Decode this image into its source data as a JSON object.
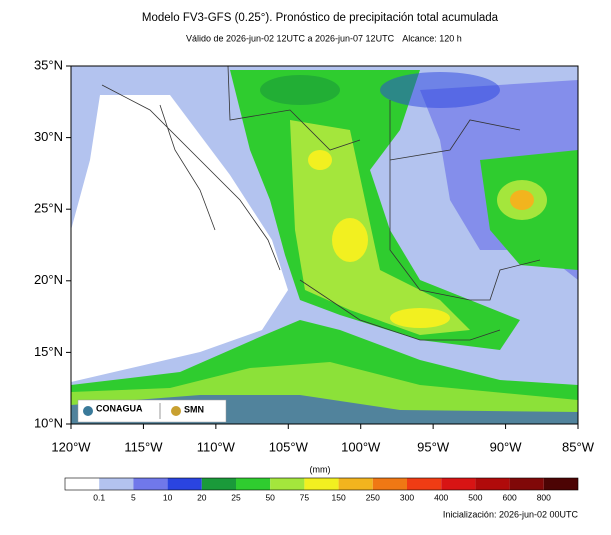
{
  "header": {
    "title": "Modelo FV3-GFS (0.25°). Pronóstico de precipitación total acumulada",
    "valid": "Válido de 2026-jun-02 12UTC a 2026-jun-07 12UTC",
    "range": "Alcance: 120 h"
  },
  "map": {
    "lat_labels": [
      "35°N",
      "30°N",
      "25°N",
      "20°N",
      "15°N",
      "10°N"
    ],
    "lon_labels": [
      "120°W",
      "115°W",
      "110°W",
      "105°W",
      "100°W",
      "95°W",
      "90°W",
      "85°W"
    ],
    "logos": [
      "CONAGUA",
      "SMN"
    ]
  },
  "colorbar": {
    "unit": "(mm)",
    "levels": [
      0.1,
      5,
      10,
      20,
      25,
      50,
      75,
      150,
      250,
      300,
      400,
      500,
      600,
      800
    ],
    "colors": [
      "#ffffff",
      "#b3c3ef",
      "#7078ea",
      "#2a44e0",
      "#1a9a3a",
      "#2fcc2f",
      "#a4e63c",
      "#f2f020",
      "#f2b41e",
      "#f07814",
      "#f03c14",
      "#d81414",
      "#b00a0a",
      "#800808",
      "#4c0404"
    ]
  },
  "footer": {
    "initialization": "Inicialización: 2026-jun-02 00UTC"
  }
}
